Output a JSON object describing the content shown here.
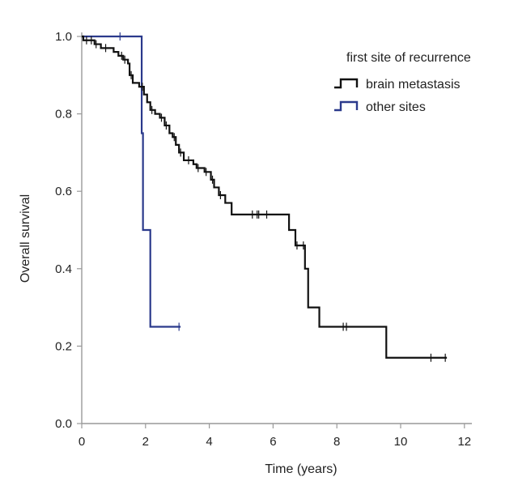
{
  "chart_data": {
    "type": "line",
    "subtype": "kaplan-meier",
    "xlabel": "Time (years)",
    "ylabel": "Overall survival",
    "xlim": [
      0,
      12
    ],
    "ylim": [
      0,
      1
    ],
    "xticks": [
      "0",
      "2",
      "4",
      "6",
      "8",
      "10",
      "12"
    ],
    "yticks": [
      "0.0",
      "0.2",
      "0.4",
      "0.6",
      "0.8",
      "1.0"
    ],
    "legend": {
      "title": "first site of recurrence",
      "placement": "top-right"
    },
    "series": [
      {
        "name": "brain metastasis",
        "color": "#111111",
        "steps": [
          [
            0,
            1.0
          ],
          [
            0.05,
            0.99
          ],
          [
            0.4,
            0.98
          ],
          [
            0.6,
            0.97
          ],
          [
            1.0,
            0.96
          ],
          [
            1.15,
            0.95
          ],
          [
            1.3,
            0.94
          ],
          [
            1.45,
            0.93
          ],
          [
            1.5,
            0.9
          ],
          [
            1.6,
            0.88
          ],
          [
            1.8,
            0.87
          ],
          [
            1.95,
            0.85
          ],
          [
            2.05,
            0.83
          ],
          [
            2.15,
            0.81
          ],
          [
            2.3,
            0.8
          ],
          [
            2.45,
            0.79
          ],
          [
            2.6,
            0.77
          ],
          [
            2.75,
            0.75
          ],
          [
            2.85,
            0.74
          ],
          [
            2.95,
            0.72
          ],
          [
            3.05,
            0.7
          ],
          [
            3.2,
            0.68
          ],
          [
            3.5,
            0.67
          ],
          [
            3.6,
            0.66
          ],
          [
            3.85,
            0.65
          ],
          [
            4.05,
            0.63
          ],
          [
            4.15,
            0.61
          ],
          [
            4.3,
            0.59
          ],
          [
            4.5,
            0.57
          ],
          [
            4.7,
            0.54
          ],
          [
            6.5,
            0.5
          ],
          [
            6.7,
            0.46
          ],
          [
            7.0,
            0.4
          ],
          [
            7.1,
            0.3
          ],
          [
            7.45,
            0.25
          ],
          [
            9.55,
            0.17
          ],
          [
            11.45,
            0.17
          ]
        ],
        "censored": [
          0.15,
          0.3,
          0.45,
          0.75,
          1.25,
          1.35,
          1.55,
          1.9,
          2.2,
          2.5,
          2.65,
          2.9,
          3.1,
          3.35,
          3.65,
          3.9,
          4.1,
          4.35,
          5.35,
          5.5,
          5.55,
          5.8,
          6.75,
          6.95,
          8.2,
          8.3,
          10.95,
          11.4
        ]
      },
      {
        "name": "other sites",
        "color": "#2b3a8c",
        "steps": [
          [
            0,
            1.0
          ],
          [
            1.88,
            0.75
          ],
          [
            1.92,
            0.5
          ],
          [
            2.15,
            0.25
          ],
          [
            3.1,
            0.25
          ]
        ],
        "censored": [
          1.2,
          3.05
        ]
      }
    ]
  }
}
